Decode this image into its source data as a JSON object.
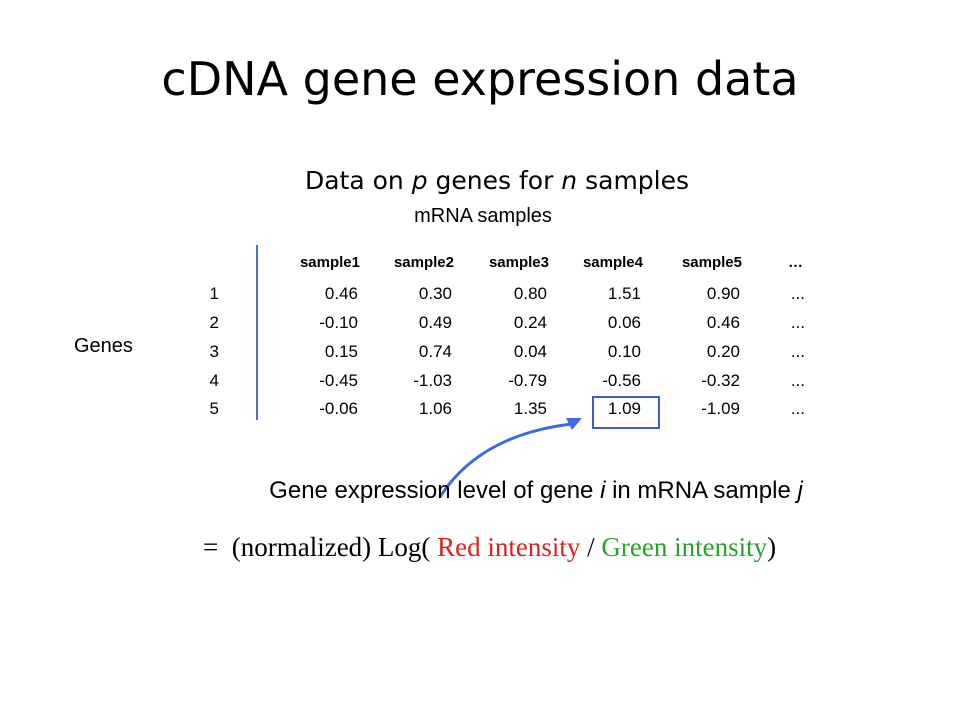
{
  "title": "cDNA gene expression data",
  "subtitle": [
    "Data on ",
    "p",
    " genes for ",
    "n",
    " samples"
  ],
  "table": {
    "column_group": "mRNA samples",
    "row_group": "Genes",
    "header": [
      "sample1",
      "sample2",
      "sample3",
      "sample4",
      "sample5",
      "…"
    ],
    "rows": [
      {
        "label": "1",
        "cells": [
          "0.46",
          "0.30",
          "0.80",
          "1.51",
          "0.90",
          "..."
        ]
      },
      {
        "label": "2",
        "cells": [
          "-0.10",
          "0.49",
          "0.24",
          "0.06",
          "0.46",
          "..."
        ]
      },
      {
        "label": "3",
        "cells": [
          "0.15",
          "0.74",
          "0.04",
          "0.10",
          "0.20",
          "..."
        ]
      },
      {
        "label": "4",
        "cells": [
          "-0.45",
          "-1.03",
          "-0.79",
          "-0.56",
          "-0.32",
          "..."
        ]
      },
      {
        "label": "5",
        "cells": [
          "-0.06",
          "1.06",
          "1.35",
          "1.09",
          "-1.09",
          "..."
        ]
      }
    ]
  },
  "caption": [
    "Gene expression level of gene ",
    "i",
    " in mRNA sample ",
    "j"
  ],
  "formula": [
    "=",
    "(normalized) Log(",
    "Red intensity",
    "/",
    "Green intensity",
    ")"
  ]
}
